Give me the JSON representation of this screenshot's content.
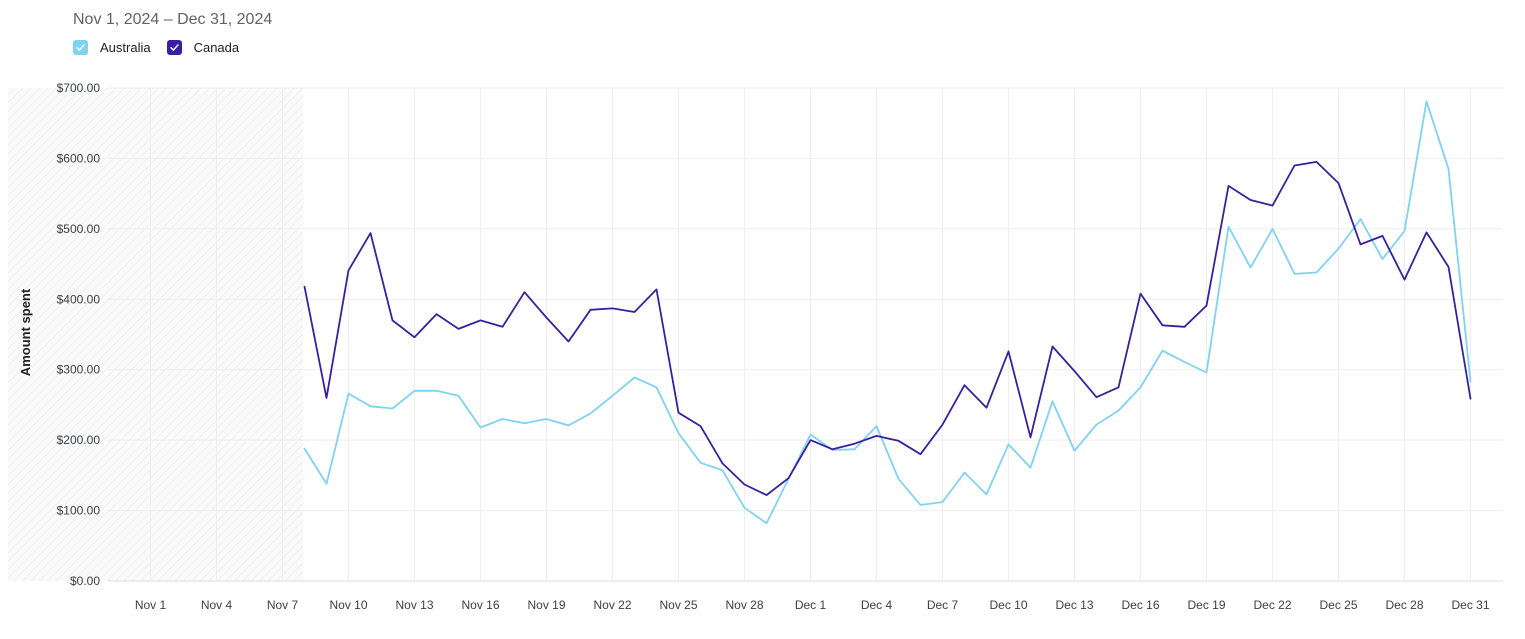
{
  "header": {
    "date_range": "Nov 1, 2024 – Dec 31, 2024"
  },
  "legend": [
    {
      "label": "Australia",
      "color": "#7fd3f2",
      "checked": true
    },
    {
      "label": "Canada",
      "color": "#3a1fa0",
      "checked": true
    }
  ],
  "chart_data": {
    "type": "line",
    "ylabel": "Amount spent",
    "ylim": [
      0,
      700
    ],
    "y_ticks": [
      "$0.00",
      "$100.00",
      "$200.00",
      "$300.00",
      "$400.00",
      "$500.00",
      "$600.00",
      "$700.00"
    ],
    "x_ticks": [
      "Nov 1",
      "Nov 4",
      "Nov 7",
      "Nov 10",
      "Nov 13",
      "Nov 16",
      "Nov 19",
      "Nov 22",
      "Nov 25",
      "Nov 28",
      "Dec 1",
      "Dec 4",
      "Dec 7",
      "Dec 10",
      "Dec 13",
      "Dec 16",
      "Dec 19",
      "Dec 22",
      "Dec 25",
      "Dec 28",
      "Dec 31"
    ],
    "x_start": "Nov 1",
    "no_data_range": [
      "Nov 1",
      "Nov 8"
    ],
    "grid": true,
    "legend_position": "top-left",
    "series": [
      {
        "name": "Australia",
        "color": "#7fd3f2",
        "start": "Nov 8",
        "values": [
          188,
          138,
          266,
          248,
          245,
          270,
          270,
          263,
          218,
          230,
          224,
          230,
          221,
          238,
          263,
          289,
          275,
          210,
          168,
          157,
          104,
          82,
          145,
          208,
          186,
          187,
          220,
          145,
          108,
          112,
          154,
          123,
          194,
          161,
          255,
          185,
          222,
          242,
          275,
          327,
          311,
          296,
          503,
          445,
          500,
          436,
          438,
          472,
          514,
          457,
          497,
          681,
          585,
          283
        ]
      },
      {
        "name": "Canada",
        "color": "#3a1fa0",
        "start": "Nov 8",
        "values": [
          418,
          260,
          441,
          494,
          370,
          346,
          379,
          358,
          370,
          361,
          410,
          374,
          340,
          385,
          387,
          382,
          414,
          239,
          220,
          167,
          137,
          122,
          146,
          200,
          187,
          195,
          206,
          199,
          180,
          222,
          278,
          246,
          326,
          204,
          333,
          298,
          261,
          275,
          408,
          363,
          361,
          391,
          561,
          541,
          533,
          590,
          595,
          565,
          478,
          490,
          428,
          495,
          446,
          259
        ]
      }
    ]
  }
}
